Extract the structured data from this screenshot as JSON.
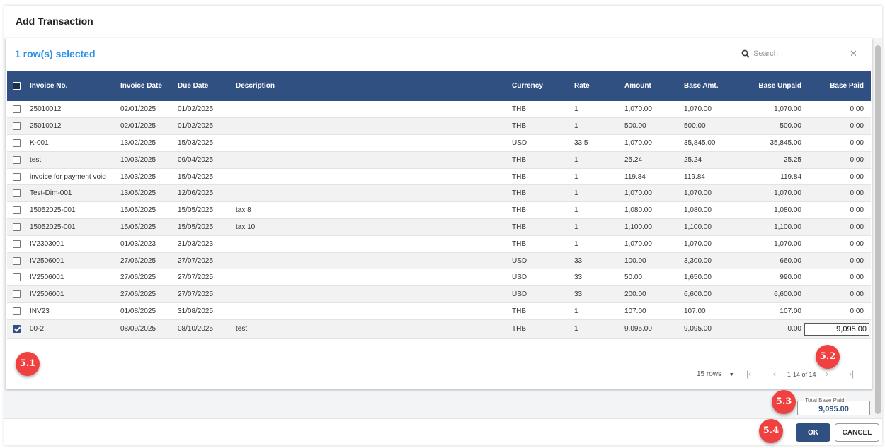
{
  "dialog": {
    "title": "Add Transaction"
  },
  "selection": {
    "count_label": "1 row(s) selected"
  },
  "search": {
    "placeholder": "Search",
    "clear_glyph": "✕"
  },
  "table": {
    "columns": [
      "Invoice No.",
      "Invoice Date",
      "Due Date",
      "Description",
      "Currency",
      "Rate",
      "Amount",
      "Base Amt.",
      "Base Unpaid",
      "Base Paid"
    ],
    "rows": [
      {
        "checked": false,
        "invoice_no": "25010012",
        "invoice_date": "02/01/2025",
        "due_date": "01/02/2025",
        "description": "",
        "currency": "THB",
        "rate": "1",
        "amount": "1,070.00",
        "base_amt": "1,070.00",
        "base_unpaid": "1,070.00",
        "base_paid": "0.00"
      },
      {
        "checked": false,
        "invoice_no": "25010012",
        "invoice_date": "02/01/2025",
        "due_date": "01/02/2025",
        "description": "",
        "currency": "THB",
        "rate": "1",
        "amount": "500.00",
        "base_amt": "500.00",
        "base_unpaid": "500.00",
        "base_paid": "0.00"
      },
      {
        "checked": false,
        "invoice_no": "K-001",
        "invoice_date": "13/02/2025",
        "due_date": "15/03/2025",
        "description": "",
        "currency": "USD",
        "rate": "33.5",
        "amount": "1,070.00",
        "base_amt": "35,845.00",
        "base_unpaid": "35,845.00",
        "base_paid": "0.00"
      },
      {
        "checked": false,
        "invoice_no": "test",
        "invoice_date": "10/03/2025",
        "due_date": "09/04/2025",
        "description": "",
        "currency": "THB",
        "rate": "1",
        "amount": "25.24",
        "base_amt": "25.24",
        "base_unpaid": "25.25",
        "base_paid": "0.00"
      },
      {
        "checked": false,
        "invoice_no": "invoice for payment void",
        "invoice_date": "16/03/2025",
        "due_date": "15/04/2025",
        "description": "",
        "currency": "THB",
        "rate": "1",
        "amount": "119.84",
        "base_amt": "119.84",
        "base_unpaid": "119.84",
        "base_paid": "0.00"
      },
      {
        "checked": false,
        "invoice_no": "Test-Dim-001",
        "invoice_date": "13/05/2025",
        "due_date": "12/06/2025",
        "description": "",
        "currency": "THB",
        "rate": "1",
        "amount": "1,070.00",
        "base_amt": "1,070.00",
        "base_unpaid": "1,070.00",
        "base_paid": "0.00"
      },
      {
        "checked": false,
        "invoice_no": "15052025-001",
        "invoice_date": "15/05/2025",
        "due_date": "15/05/2025",
        "description": "tax 8",
        "currency": "THB",
        "rate": "1",
        "amount": "1,080.00",
        "base_amt": "1,080.00",
        "base_unpaid": "1,080.00",
        "base_paid": "0.00"
      },
      {
        "checked": false,
        "invoice_no": "15052025-001",
        "invoice_date": "15/05/2025",
        "due_date": "15/05/2025",
        "description": "tax 10",
        "currency": "THB",
        "rate": "1",
        "amount": "1,100.00",
        "base_amt": "1,100.00",
        "base_unpaid": "1,100.00",
        "base_paid": "0.00"
      },
      {
        "checked": false,
        "invoice_no": "IV2303001",
        "invoice_date": "01/03/2023",
        "due_date": "31/03/2023",
        "description": "",
        "currency": "THB",
        "rate": "1",
        "amount": "1,070.00",
        "base_amt": "1,070.00",
        "base_unpaid": "1,070.00",
        "base_paid": "0.00"
      },
      {
        "checked": false,
        "invoice_no": "IV2506001",
        "invoice_date": "27/06/2025",
        "due_date": "27/07/2025",
        "description": "",
        "currency": "USD",
        "rate": "33",
        "amount": "100.00",
        "base_amt": "3,300.00",
        "base_unpaid": "660.00",
        "base_paid": "0.00"
      },
      {
        "checked": false,
        "invoice_no": "IV2506001",
        "invoice_date": "27/06/2025",
        "due_date": "27/07/2025",
        "description": "",
        "currency": "USD",
        "rate": "33",
        "amount": "50.00",
        "base_amt": "1,650.00",
        "base_unpaid": "990.00",
        "base_paid": "0.00"
      },
      {
        "checked": false,
        "invoice_no": "IV2506001",
        "invoice_date": "27/06/2025",
        "due_date": "27/07/2025",
        "description": "",
        "currency": "USD",
        "rate": "33",
        "amount": "200.00",
        "base_amt": "6,600.00",
        "base_unpaid": "6,600.00",
        "base_paid": "0.00"
      },
      {
        "checked": false,
        "invoice_no": "INV23",
        "invoice_date": "01/08/2025",
        "due_date": "31/08/2025",
        "description": "",
        "currency": "THB",
        "rate": "1",
        "amount": "107.00",
        "base_amt": "107.00",
        "base_unpaid": "107.00",
        "base_paid": "0.00"
      },
      {
        "checked": true,
        "invoice_no": "00-2",
        "invoice_date": "08/09/2025",
        "due_date": "08/10/2025",
        "description": "test",
        "currency": "THB",
        "rate": "1",
        "amount": "9,095.00",
        "base_amt": "9,095.00",
        "base_unpaid": "0.00",
        "base_paid": "9,095.00"
      }
    ]
  },
  "pagination": {
    "rows_per_page": "15 rows",
    "range": "1-14 of 14",
    "first_glyph": "|‹",
    "prev_glyph": "‹",
    "next_glyph": "›",
    "last_glyph": "›|",
    "dropdown_glyph": "▼"
  },
  "total": {
    "label": "Total Base Paid",
    "value": "9,095.00"
  },
  "footer": {
    "ok_label": "OK",
    "cancel_label": "CANCEL"
  },
  "badges": [
    "5.1",
    "5.2",
    "5.3",
    "5.4"
  ],
  "colors": {
    "header_bg": "#2f5080",
    "accent_blue": "#2e93e8",
    "badge_red": "#f04040"
  },
  "icons": {
    "search": "search-icon",
    "close": "close-icon"
  }
}
